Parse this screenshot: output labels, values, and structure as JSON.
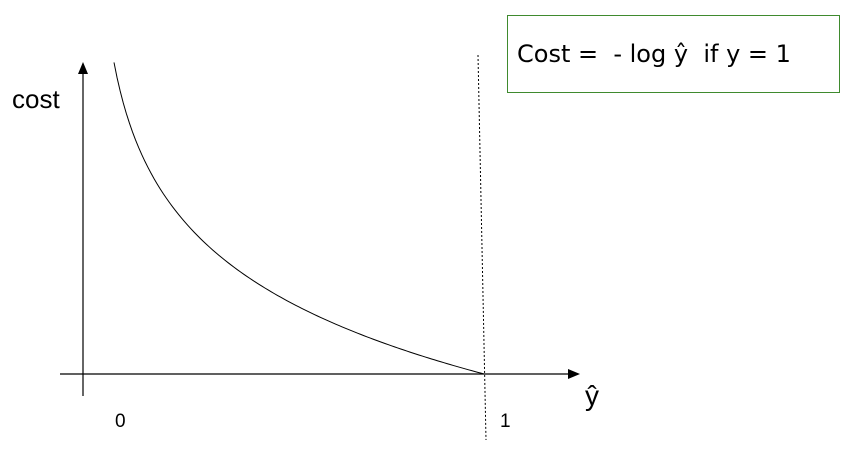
{
  "formula": "Cost =  - log ŷ  if y = 1",
  "axes": {
    "y_label": "cost",
    "x_label": "ŷ",
    "x_tick_0": "0",
    "x_tick_1": "1"
  },
  "chart_data": {
    "type": "line",
    "function": "-log(ŷ)",
    "x_range": [
      0,
      1
    ],
    "series": [
      {
        "x": [
          0.05,
          0.1,
          0.2,
          0.3,
          0.4,
          0.5,
          0.6,
          0.7,
          0.8,
          0.9,
          1.0
        ],
        "y": [
          3.0,
          2.3,
          1.61,
          1.2,
          0.92,
          0.69,
          0.51,
          0.36,
          0.22,
          0.11,
          0.0
        ]
      }
    ],
    "colors": {
      "curve": "#000000",
      "legend_border": "#3f8a2e"
    }
  }
}
